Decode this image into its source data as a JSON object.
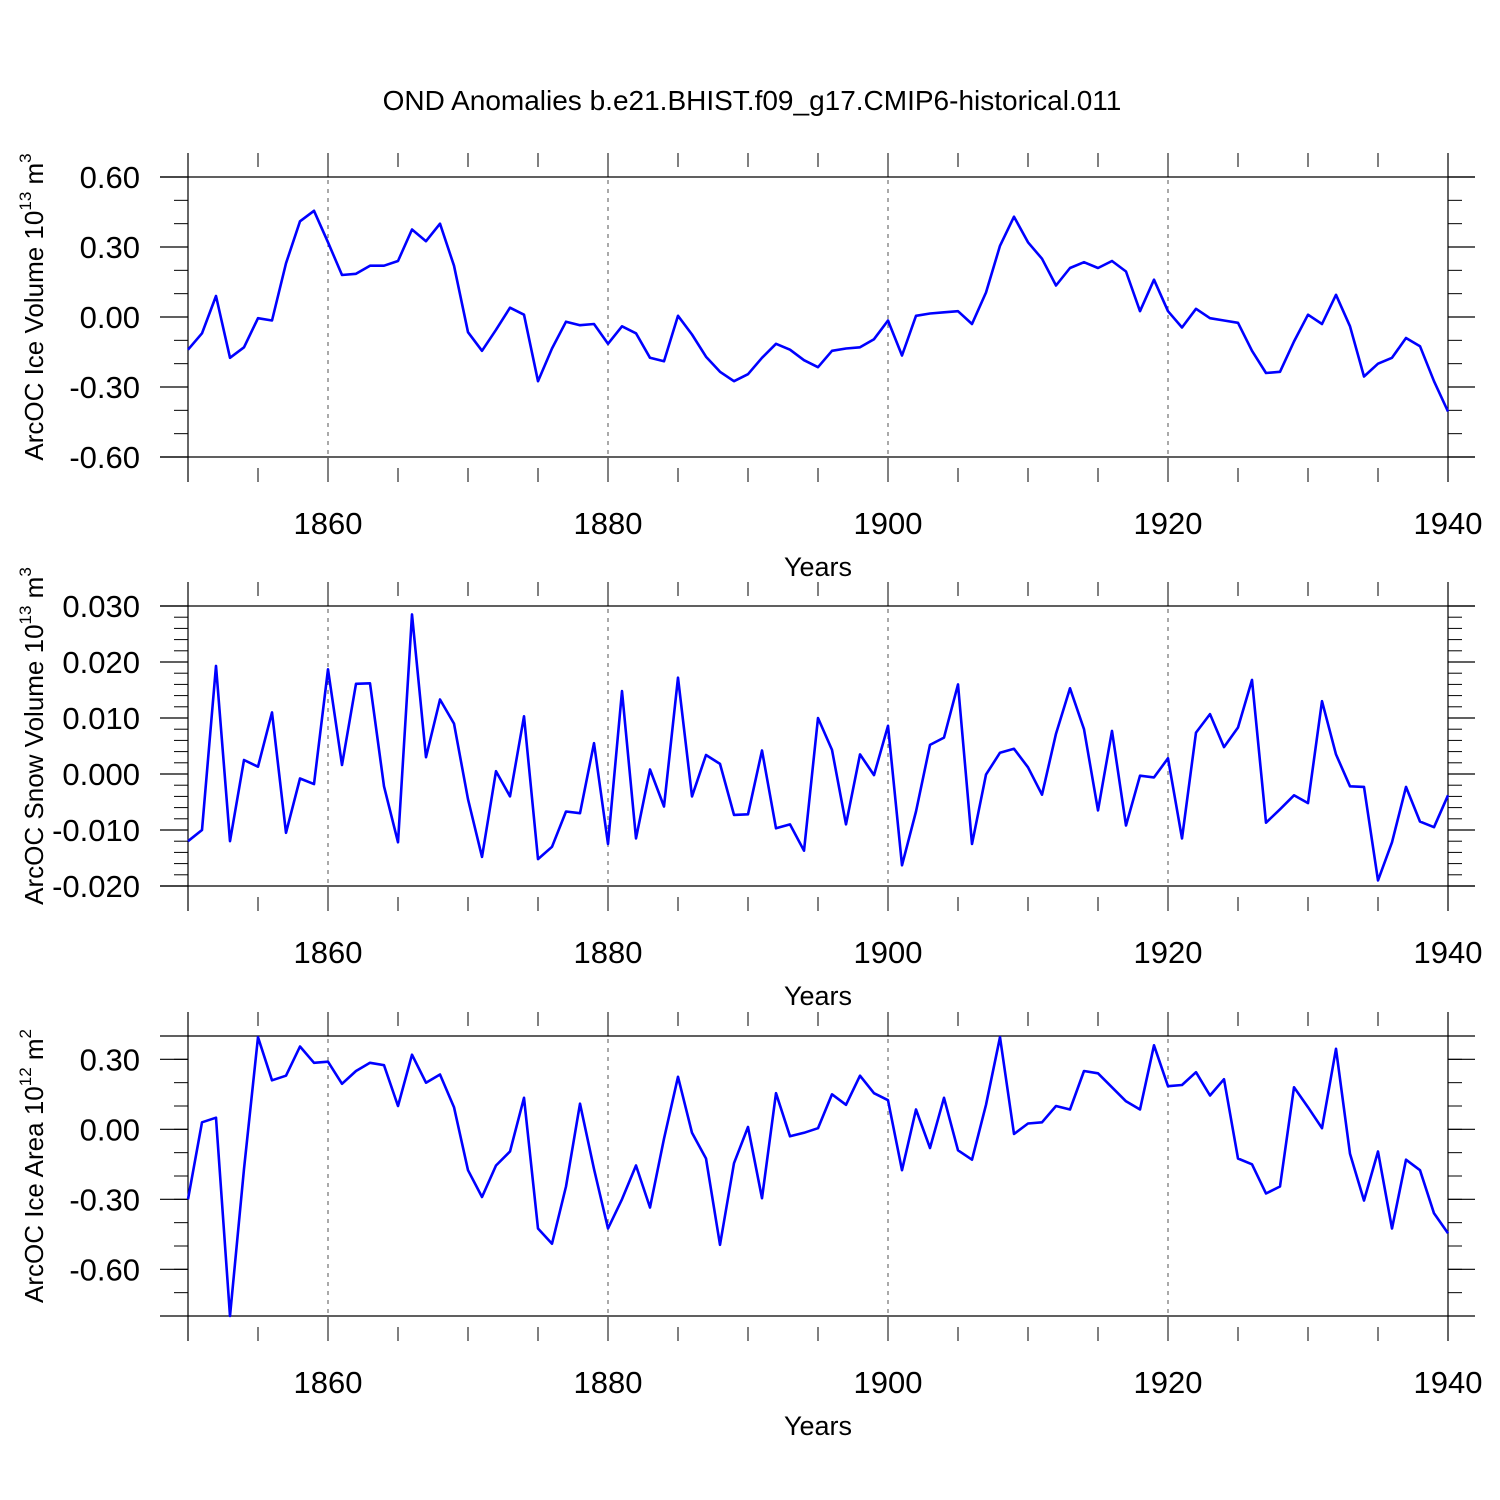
{
  "title": "OND Anomalies b.e21.BHIST.f09_g17.CMIP6-historical.011",
  "line_color": "#0000ff",
  "chart_data": [
    {
      "type": "line",
      "ylabel_main": "ArcOC Ice Volume 10",
      "ylabel_sup": "13",
      "ylabel_unit": "m",
      "ylabel_unit_sup": "3",
      "xlabel": "Years",
      "xlim": [
        1850,
        1940
      ],
      "ylim": [
        -0.6,
        0.6
      ],
      "xticks": [
        1860,
        1880,
        1900,
        1920,
        1940
      ],
      "xtick_labels": [
        "1860",
        "1880",
        "1900",
        "1920",
        "1940"
      ],
      "yticks": [
        -0.6,
        -0.3,
        0.0,
        0.3,
        0.6
      ],
      "ytick_labels": [
        "-0.60",
        "-0.30",
        "0.00",
        "0.30",
        "0.60"
      ],
      "minor_ystep": 0.1,
      "x_start": 1850,
      "values": [
        -0.14,
        -0.07,
        0.09,
        -0.175,
        -0.13,
        -0.005,
        -0.015,
        0.23,
        0.41,
        0.455,
        0.32,
        0.18,
        0.185,
        0.22,
        0.22,
        0.24,
        0.375,
        0.325,
        0.4,
        0.22,
        -0.065,
        -0.145,
        -0.055,
        0.04,
        0.01,
        -0.275,
        -0.135,
        -0.02,
        -0.035,
        -0.03,
        -0.115,
        -0.04,
        -0.07,
        -0.175,
        -0.19,
        0.005,
        -0.075,
        -0.17,
        -0.235,
        -0.275,
        -0.245,
        -0.175,
        -0.115,
        -0.14,
        -0.185,
        -0.215,
        -0.145,
        -0.135,
        -0.13,
        -0.095,
        -0.015,
        -0.165,
        0.005,
        0.015,
        0.02,
        0.025,
        -0.03,
        0.105,
        0.305,
        0.43,
        0.32,
        0.25,
        0.135,
        0.21,
        0.235,
        0.21,
        0.24,
        0.195,
        0.025,
        0.16,
        0.025,
        -0.045,
        0.035,
        -0.005,
        -0.015,
        -0.025,
        -0.145,
        -0.24,
        -0.235,
        -0.105,
        0.01,
        -0.03,
        0.095,
        -0.04,
        -0.255,
        -0.2,
        -0.175,
        -0.09,
        -0.125,
        -0.275,
        -0.405
      ]
    },
    {
      "type": "line",
      "ylabel_main": "ArcOC Snow Volume 10",
      "ylabel_sup": "13",
      "ylabel_unit": "m",
      "ylabel_unit_sup": "3",
      "xlabel": "Years",
      "xlim": [
        1850,
        1940
      ],
      "ylim": [
        -0.02,
        0.03
      ],
      "xticks": [
        1860,
        1880,
        1900,
        1920,
        1940
      ],
      "xtick_labels": [
        "1860",
        "1880",
        "1900",
        "1920",
        "1940"
      ],
      "yticks": [
        -0.02,
        -0.01,
        0.0,
        0.01,
        0.02,
        0.03
      ],
      "ytick_labels": [
        "-0.020",
        "-0.010",
        "0.000",
        "0.010",
        "0.020",
        "0.030"
      ],
      "minor_ystep": 0.002,
      "x_start": 1850,
      "values": [
        -0.012,
        -0.01,
        0.0193,
        -0.012,
        0.0025,
        0.0013,
        0.011,
        -0.0105,
        -0.0008,
        -0.0018,
        0.0187,
        0.0016,
        0.0161,
        0.0162,
        -0.0022,
        -0.0122,
        0.0285,
        0.003,
        0.0133,
        0.009,
        -0.0045,
        -0.0148,
        0.0005,
        -0.004,
        0.0103,
        -0.0152,
        -0.013,
        -0.0067,
        -0.007,
        0.0055,
        -0.0125,
        0.0148,
        -0.0115,
        0.0008,
        -0.0058,
        0.0172,
        -0.004,
        0.0034,
        0.0018,
        -0.0073,
        -0.0072,
        0.0042,
        -0.0097,
        -0.009,
        -0.0137,
        0.01,
        0.0043,
        -0.009,
        0.0035,
        -0.0002,
        0.0086,
        -0.0163,
        -0.0067,
        0.0052,
        0.0065,
        0.016,
        -0.0125,
        -0.0001,
        0.0038,
        0.0045,
        0.0012,
        -0.0037,
        0.0072,
        0.0153,
        0.008,
        -0.0065,
        0.0077,
        -0.0092,
        -0.0003,
        -0.0006,
        0.0028,
        -0.0115,
        0.0074,
        0.0107,
        0.0048,
        0.0083,
        0.0168,
        -0.0087,
        -0.0063,
        -0.0038,
        -0.0052,
        0.013,
        0.0035,
        -0.0022,
        -0.0023,
        -0.019,
        -0.0122,
        -0.0023,
        -0.0085,
        -0.0095,
        -0.0038
      ]
    },
    {
      "type": "line",
      "ylabel_main": "ArcOC Ice Area 10",
      "ylabel_sup": "12",
      "ylabel_unit": "m",
      "ylabel_unit_sup": "2",
      "xlabel": "Years",
      "xlim": [
        1850,
        1940
      ],
      "ylim": [
        -0.8,
        0.4
      ],
      "xticks": [
        1860,
        1880,
        1900,
        1920,
        1940
      ],
      "xtick_labels": [
        "1860",
        "1880",
        "1900",
        "1920",
        "1940"
      ],
      "yticks": [
        -0.6,
        -0.3,
        0.0,
        0.3
      ],
      "ytick_labels": [
        "-0.60",
        "-0.30",
        "0.00",
        "0.30"
      ],
      "minor_ystep": 0.1,
      "x_start": 1850,
      "values": [
        -0.3,
        0.03,
        0.05,
        -0.8,
        -0.17,
        0.395,
        0.21,
        0.23,
        0.355,
        0.285,
        0.29,
        0.195,
        0.25,
        0.285,
        0.275,
        0.1,
        0.32,
        0.2,
        0.235,
        0.095,
        -0.175,
        -0.29,
        -0.155,
        -0.095,
        0.135,
        -0.425,
        -0.49,
        -0.245,
        0.11,
        -0.17,
        -0.425,
        -0.3,
        -0.155,
        -0.335,
        -0.04,
        0.225,
        -0.015,
        -0.125,
        -0.495,
        -0.145,
        0.01,
        -0.295,
        0.155,
        -0.03,
        -0.015,
        0.005,
        0.15,
        0.105,
        0.23,
        0.155,
        0.125,
        -0.175,
        0.085,
        -0.08,
        0.135,
        -0.09,
        -0.13,
        0.105,
        0.395,
        -0.02,
        0.025,
        0.03,
        0.1,
        0.085,
        0.25,
        0.24,
        0.18,
        0.12,
        0.085,
        0.36,
        0.185,
        0.19,
        0.245,
        0.145,
        0.215,
        -0.125,
        -0.15,
        -0.275,
        -0.245,
        0.18,
        0.095,
        0.005,
        0.345,
        -0.105,
        -0.305,
        -0.095,
        -0.425,
        -0.13,
        -0.175,
        -0.36,
        -0.445
      ]
    }
  ]
}
